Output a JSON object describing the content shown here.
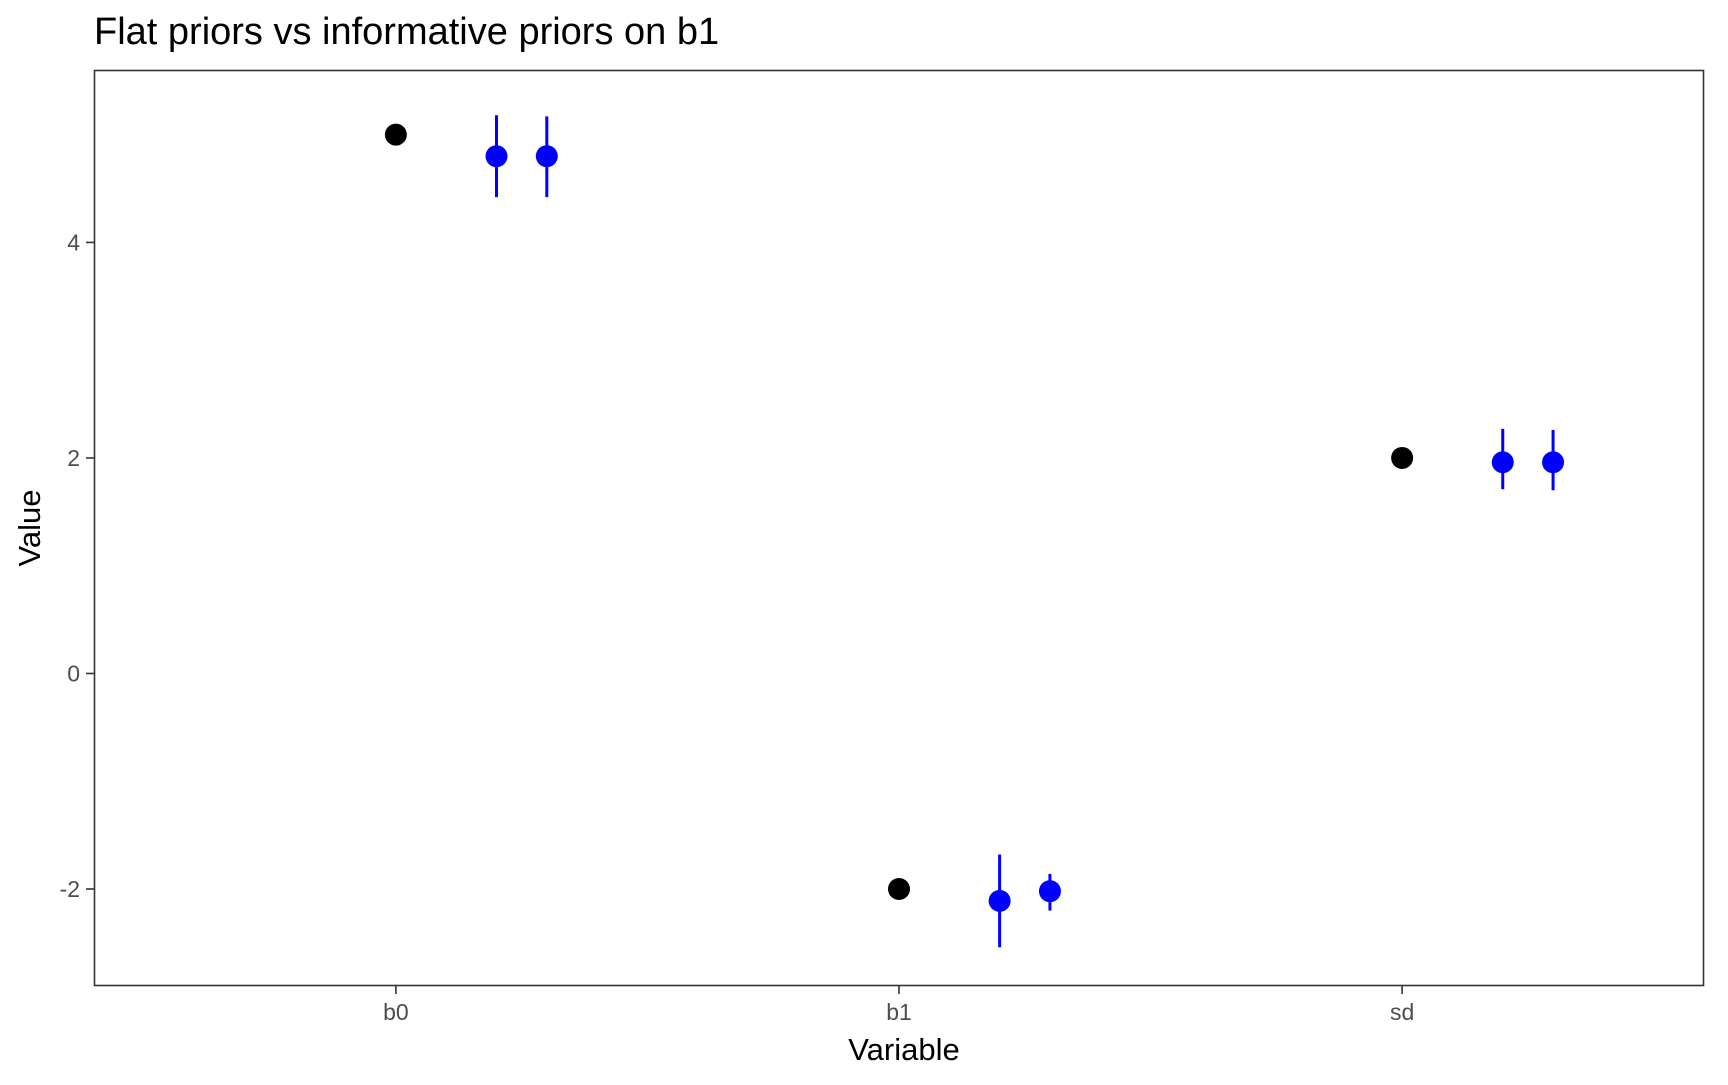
{
  "chart_data": {
    "type": "scatter",
    "title": "Flat priors vs informative priors on b1",
    "xlabel": "Variable",
    "ylabel": "Value",
    "categories": [
      "b0",
      "b1",
      "sd"
    ],
    "ylim": [
      -2.9,
      5.6
    ],
    "yticks": [
      -2,
      0,
      2,
      4
    ],
    "ytick_labels": [
      "-2",
      "0",
      "2",
      "4"
    ],
    "grid": false,
    "series": [
      {
        "color": "#000000",
        "offset": 0.0,
        "points": [
          {
            "x": "b0",
            "y": 5.0
          },
          {
            "x": "b1",
            "y": -2.0
          },
          {
            "x": "sd",
            "y": 2.0
          }
        ]
      },
      {
        "color": "#0000ff",
        "offset": 0.2,
        "points": [
          {
            "x": "b0",
            "y": 4.8,
            "lo": 4.42,
            "hi": 5.18
          },
          {
            "x": "b1",
            "y": -2.11,
            "lo": -2.54,
            "hi": -1.68
          },
          {
            "x": "sd",
            "y": 1.96,
            "lo": 1.71,
            "hi": 2.27
          }
        ]
      },
      {
        "color": "#0000ff",
        "offset": 0.3,
        "points": [
          {
            "x": "b0",
            "y": 4.8,
            "lo": 4.42,
            "hi": 5.17
          },
          {
            "x": "b1",
            "y": -2.02,
            "lo": -2.2,
            "hi": -1.86
          },
          {
            "x": "sd",
            "y": 1.96,
            "lo": 1.7,
            "hi": 2.26
          }
        ]
      }
    ]
  }
}
